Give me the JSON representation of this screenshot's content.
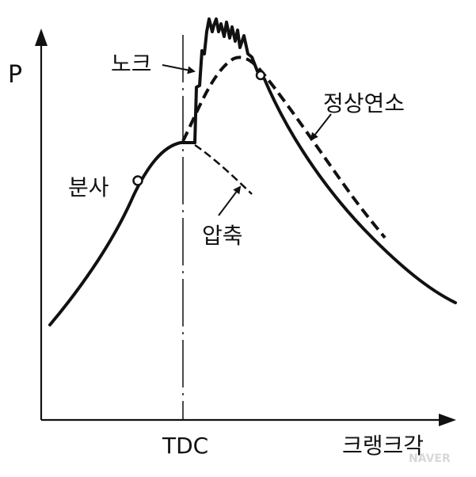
{
  "labels": {
    "y_axis": "P",
    "x_axis": "크랭크각",
    "tdc": "TDC",
    "knock": "노크",
    "injection": "분사",
    "compression": "압축",
    "normal_combustion": "정상연소"
  },
  "watermark": "NAVER",
  "colors": {
    "ink": "#111111",
    "background": "#ffffff",
    "watermark": "#d8d8d8"
  }
}
